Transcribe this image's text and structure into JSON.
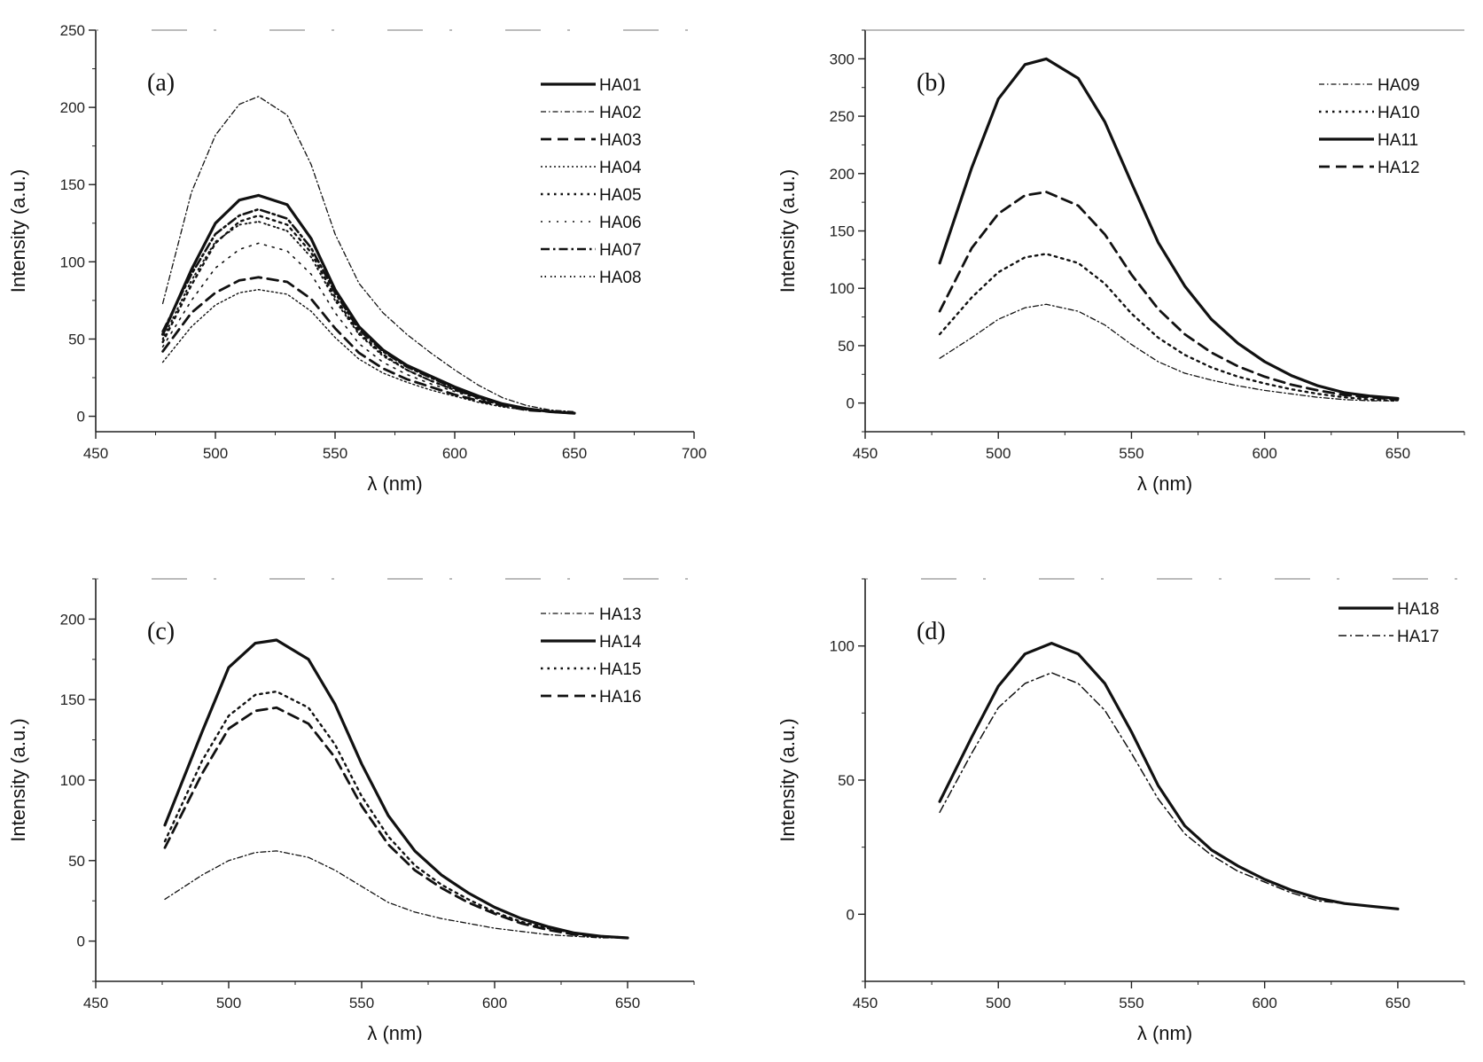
{
  "chart_data": [
    {
      "type": "line",
      "panel_label": "(a)",
      "xlabel": "λ (nm)",
      "ylabel": "Intensity (a.u.)",
      "xlim": [
        450,
        700
      ],
      "ylim": [
        -10,
        250
      ],
      "xticks": [
        450,
        500,
        550,
        600,
        650,
        700
      ],
      "yticks": [
        0,
        50,
        100,
        150,
        200,
        250
      ],
      "legend_position": "top-right",
      "x": [
        478,
        490,
        500,
        510,
        518,
        530,
        540,
        550,
        560,
        570,
        580,
        590,
        600,
        610,
        620,
        630,
        640,
        650
      ],
      "series": [
        {
          "name": "HA01",
          "style": "solid-bold",
          "values": [
            53,
            95,
            125,
            140,
            143,
            137,
            115,
            82,
            58,
            43,
            33,
            26,
            19,
            13,
            8,
            5,
            3,
            2
          ]
        },
        {
          "name": "HA02",
          "style": "dot-dash-thin",
          "values": [
            73,
            145,
            182,
            202,
            207,
            195,
            163,
            118,
            86,
            67,
            53,
            41,
            30,
            20,
            12,
            7,
            4,
            3
          ]
        },
        {
          "name": "HA03",
          "style": "dashed",
          "values": [
            42,
            67,
            80,
            88,
            90,
            87,
            76,
            57,
            41,
            31,
            24,
            19,
            14,
            10,
            7,
            4,
            3,
            2
          ]
        },
        {
          "name": "HA04",
          "style": "dotted-thin",
          "values": [
            35,
            58,
            72,
            80,
            82,
            79,
            68,
            51,
            37,
            28,
            22,
            17,
            13,
            9,
            6,
            4,
            3,
            2
          ]
        },
        {
          "name": "HA05",
          "style": "dotted",
          "values": [
            48,
            85,
            112,
            126,
            130,
            124,
            106,
            77,
            54,
            40,
            30,
            23,
            17,
            12,
            8,
            5,
            3,
            2
          ]
        },
        {
          "name": "HA06",
          "style": "dotted-sparse",
          "values": [
            45,
            75,
            96,
            108,
            112,
            107,
            92,
            67,
            47,
            35,
            27,
            21,
            16,
            11,
            7,
            4,
            3,
            2
          ]
        },
        {
          "name": "HA07",
          "style": "dash-dot",
          "values": [
            55,
            92,
            118,
            130,
            134,
            128,
            109,
            80,
            56,
            42,
            32,
            25,
            18,
            12,
            8,
            5,
            3,
            2
          ]
        },
        {
          "name": "HA08",
          "style": "dot-dot",
          "values": [
            50,
            88,
            113,
            124,
            126,
            120,
            103,
            75,
            53,
            39,
            30,
            23,
            17,
            12,
            8,
            5,
            3,
            2
          ]
        }
      ]
    },
    {
      "type": "line",
      "panel_label": "(b)",
      "xlabel": "λ (nm)",
      "ylabel": "Intensity (a.u.)",
      "xlim": [
        450,
        675
      ],
      "ylim": [
        -25,
        325
      ],
      "xticks": [
        450,
        500,
        550,
        600,
        650
      ],
      "yticks": [
        0,
        50,
        100,
        150,
        200,
        250,
        300
      ],
      "legend_position": "top-right",
      "x": [
        478,
        490,
        500,
        510,
        518,
        530,
        540,
        550,
        560,
        570,
        580,
        590,
        600,
        610,
        620,
        630,
        640,
        650
      ],
      "series": [
        {
          "name": "HA09",
          "style": "dot-dash-thin",
          "values": [
            39,
            57,
            73,
            83,
            86,
            80,
            68,
            51,
            36,
            26,
            20,
            15,
            11,
            8,
            5,
            3,
            2,
            2
          ]
        },
        {
          "name": "HA10",
          "style": "dotted",
          "values": [
            60,
            92,
            114,
            127,
            130,
            122,
            104,
            78,
            57,
            42,
            31,
            23,
            17,
            12,
            8,
            5,
            3,
            2
          ]
        },
        {
          "name": "HA11",
          "style": "solid-bold",
          "values": [
            122,
            205,
            265,
            295,
            300,
            283,
            245,
            192,
            140,
            102,
            73,
            52,
            36,
            24,
            15,
            9,
            6,
            4
          ]
        },
        {
          "name": "HA12",
          "style": "dashed",
          "values": [
            80,
            135,
            165,
            181,
            184,
            172,
            147,
            112,
            82,
            60,
            44,
            32,
            23,
            16,
            11,
            7,
            5,
            3
          ]
        }
      ]
    },
    {
      "type": "line",
      "panel_label": "(c)",
      "xlabel": "λ (nm)",
      "ylabel": "Intensity (a.u.)",
      "xlim": [
        450,
        675
      ],
      "ylim": [
        -25,
        225
      ],
      "xticks": [
        450,
        500,
        550,
        600,
        650
      ],
      "yticks": [
        0,
        50,
        100,
        150,
        200
      ],
      "legend_position": "top-right",
      "x": [
        476,
        490,
        500,
        510,
        518,
        530,
        540,
        550,
        560,
        570,
        580,
        590,
        600,
        610,
        620,
        630,
        640,
        650
      ],
      "series": [
        {
          "name": "HA13",
          "style": "dot-dash-thin",
          "values": [
            26,
            41,
            50,
            55,
            56,
            52,
            44,
            34,
            24,
            18,
            14,
            11,
            8,
            6,
            4,
            3,
            2,
            2
          ]
        },
        {
          "name": "HA14",
          "style": "solid-bold",
          "values": [
            72,
            130,
            170,
            185,
            187,
            175,
            147,
            110,
            78,
            56,
            41,
            30,
            21,
            14,
            9,
            5,
            3,
            2
          ]
        },
        {
          "name": "HA15",
          "style": "dotted",
          "values": [
            62,
            112,
            140,
            153,
            155,
            145,
            122,
            90,
            65,
            47,
            35,
            26,
            18,
            12,
            8,
            5,
            3,
            2
          ]
        },
        {
          "name": "HA16",
          "style": "dashed",
          "values": [
            58,
            104,
            132,
            143,
            145,
            135,
            114,
            84,
            60,
            44,
            33,
            24,
            17,
            11,
            7,
            4,
            3,
            2
          ]
        }
      ]
    },
    {
      "type": "line",
      "panel_label": "(d)",
      "xlabel": "λ (nm)",
      "ylabel": "Intensity (a.u.)",
      "xlim": [
        450,
        675
      ],
      "ylim": [
        -25,
        125
      ],
      "xticks": [
        450,
        500,
        550,
        600,
        650
      ],
      "yticks": [
        0,
        50,
        100
      ],
      "legend_position": "top-right",
      "x": [
        478,
        490,
        500,
        510,
        520,
        530,
        540,
        550,
        560,
        570,
        580,
        590,
        600,
        610,
        620,
        630,
        640,
        650
      ],
      "series": [
        {
          "name": "HA18",
          "style": "solid-bold",
          "values": [
            42,
            66,
            85,
            97,
            101,
            97,
            86,
            68,
            48,
            33,
            24,
            18,
            13,
            9,
            6,
            4,
            3,
            2
          ]
        },
        {
          "name": "HA17",
          "style": "dash-dot-thin",
          "values": [
            38,
            60,
            77,
            86,
            90,
            86,
            76,
            60,
            43,
            30,
            22,
            16,
            12,
            8,
            5,
            4,
            3,
            2
          ]
        }
      ]
    }
  ]
}
